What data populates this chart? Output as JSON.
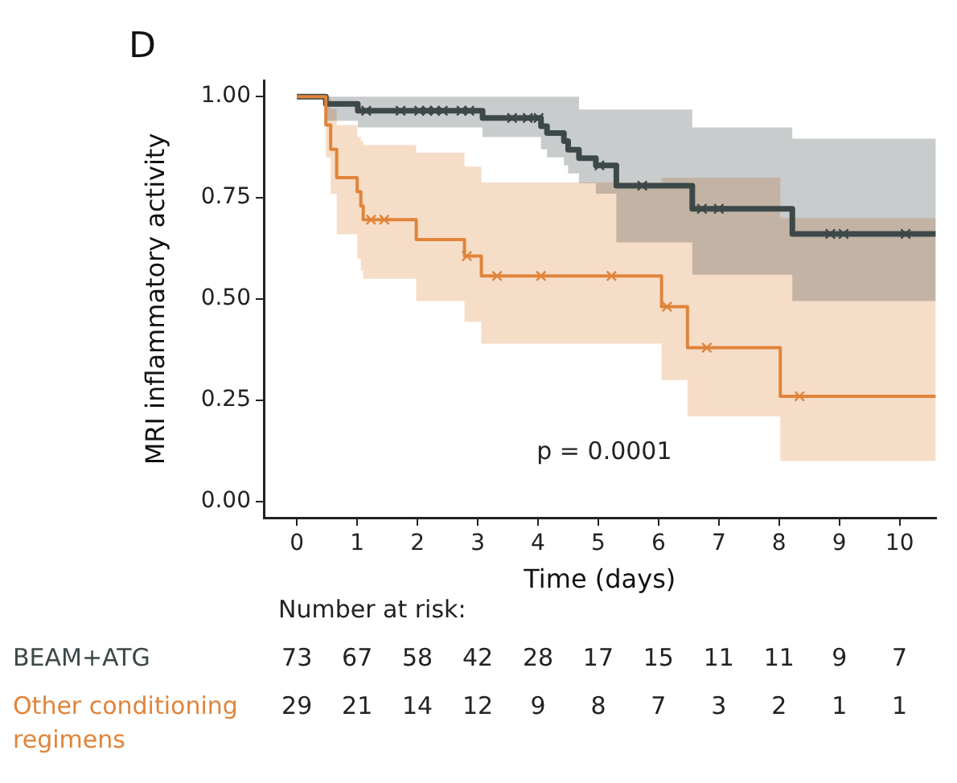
{
  "chart_data": {
    "type": "step",
    "title": "D",
    "xlabel": "Time (days)",
    "ylabel": "MRI inflammatory activity",
    "xlim": [
      -0.55,
      10.6
    ],
    "ylim": [
      -0.04,
      1.04
    ],
    "xticks": [
      0,
      1,
      2,
      3,
      4,
      5,
      6,
      7,
      8,
      9,
      10
    ],
    "yticks": [
      {
        "value": 0,
        "label": "0.00"
      },
      {
        "value": 0.25,
        "label": "0.25"
      },
      {
        "value": 0.5,
        "label": "0.50"
      },
      {
        "value": 0.75,
        "label": "0.75"
      },
      {
        "value": 1,
        "label": "1.00"
      }
    ],
    "series": [
      {
        "name": "BEAM+ATG",
        "color": "#3d4848",
        "x": [
          0,
          0.48,
          1.01,
          3.08,
          4.05,
          4.15,
          4.43,
          4.5,
          4.68,
          4.96,
          5.3,
          6.56,
          8.22,
          10.6
        ],
        "values": [
          1,
          0.982,
          0.965,
          0.947,
          0.927,
          0.91,
          0.89,
          0.869,
          0.848,
          0.83,
          0.78,
          0.723,
          0.661,
          0.661
        ],
        "upper": [
          1,
          1,
          1,
          1,
          1,
          1,
          1,
          1,
          0.968,
          0.968,
          0.968,
          0.924,
          0.896,
          0.896
        ],
        "lower": [
          1,
          0.94,
          0.924,
          0.9,
          0.87,
          0.85,
          0.83,
          0.81,
          0.786,
          0.76,
          0.64,
          0.56,
          0.495,
          0.495
        ]
      },
      {
        "name": "Other conditioning regimens",
        "color": "#e0843a",
        "x": [
          0,
          0.4,
          0.48,
          0.56,
          0.66,
          1.0,
          1.06,
          1.1,
          1.98,
          2.78,
          3.06,
          6.05,
          6.48,
          8.02,
          10.6
        ],
        "values": [
          1,
          1,
          0.93,
          0.87,
          0.8,
          0.765,
          0.73,
          0.696,
          0.647,
          0.606,
          0.557,
          0.481,
          0.38,
          0.26,
          0.26
        ],
        "upper": [
          1,
          1,
          1,
          0.97,
          0.93,
          0.9,
          0.89,
          0.88,
          0.862,
          0.827,
          0.788,
          0.8,
          0.8,
          0.7,
          0.7
        ],
        "lower": [
          1,
          1,
          0.85,
          0.76,
          0.66,
          0.6,
          0.57,
          0.55,
          0.495,
          0.444,
          0.39,
          0.3,
          0.21,
          0.1,
          0.1
        ]
      },
      {
        "type": "scatter",
        "marker": "cross",
        "color": "#3d4848",
        "x": [
          1.15,
          1.72,
          2.03,
          2.16,
          2.29,
          2.42,
          2.73,
          2.86,
          3.57,
          3.83,
          4.01,
          5.02,
          5.73,
          6.72,
          7.0,
          8.85,
          9.07,
          10.1
        ],
        "values": [
          0.965,
          0.965,
          0.965,
          0.965,
          0.965,
          0.965,
          0.965,
          0.965,
          0.947,
          0.947,
          0.947,
          0.83,
          0.78,
          0.723,
          0.723,
          0.661,
          0.661,
          0.661
        ]
      },
      {
        "type": "scatter",
        "marker": "cross",
        "color": "#e0843a",
        "x": [
          1.23,
          1.45,
          2.82,
          3.32,
          4.05,
          5.22,
          6.14,
          6.8,
          8.34
        ],
        "values": [
          0.696,
          0.696,
          0.606,
          0.557,
          0.557,
          0.557,
          0.481,
          0.38,
          0.26
        ]
      }
    ],
    "annotations": [
      "p = 0.0001",
      "Number at risk:",
      "73 67 58 42 28 17 15 11 11 9 7",
      "29 21 14 12 9 8 7 3 2 1 1"
    ]
  }
}
